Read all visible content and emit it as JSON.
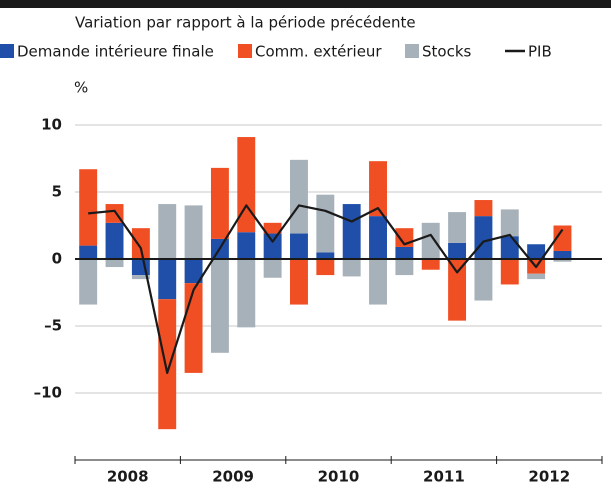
{
  "chart_data": {
    "type": "bar",
    "title": "Variation par rapport à la période précédente",
    "y_label": "%",
    "categories": [
      null,
      null,
      null,
      null,
      null,
      null,
      null,
      null,
      null,
      null,
      null,
      null,
      null,
      null,
      null,
      null,
      null,
      null,
      null,
      null
    ],
    "x_groups": [
      "2008",
      "2009",
      "2010",
      "2011",
      "2012"
    ],
    "series": [
      {
        "name": "Demande intérieure finale",
        "type": "bar",
        "color": "#1f4fa8",
        "values": [
          1.0,
          2.7,
          -1.2,
          -3.0,
          -1.8,
          1.5,
          2.0,
          1.9,
          1.9,
          0.5,
          4.1,
          3.2,
          0.9,
          0,
          1.2,
          3.2,
          1.7,
          1.1,
          0.6,
          null
        ]
      },
      {
        "name": "Comm. extérieur",
        "type": "bar",
        "color": "#f04e23",
        "values": [
          5.7,
          1.4,
          2.3,
          -9.7,
          -6.7,
          5.3,
          7.1,
          0.8,
          -3.4,
          -1.2,
          0,
          4.1,
          1.4,
          -0.8,
          -4.6,
          1.2,
          -1.9,
          -1.1,
          1.9,
          null
        ]
      },
      {
        "name": "Stocks",
        "type": "bar",
        "color": "#a7b1b9",
        "values": [
          -3.4,
          -0.6,
          -0.3,
          4.1,
          4.0,
          -7.0,
          -5.1,
          -1.4,
          5.5,
          4.3,
          -1.3,
          -3.4,
          -1.2,
          2.7,
          2.3,
          -3.1,
          2.0,
          -0.4,
          -0.2,
          null
        ]
      },
      {
        "name": "PIB",
        "type": "line",
        "color": "#1a1a1a",
        "values": [
          3.4,
          3.6,
          0.8,
          -8.5,
          -2.3,
          0.8,
          4.0,
          1.3,
          4.0,
          3.6,
          2.8,
          3.8,
          1.1,
          1.8,
          -1.0,
          1.3,
          1.8,
          -0.6,
          2.2,
          null
        ]
      }
    ],
    "ylim": [
      -15,
      12
    ],
    "yticks": [
      {
        "value": -10,
        "label": "–10"
      },
      {
        "value": -5,
        "label": "–5"
      },
      0,
      5,
      10
    ],
    "grid": true
  }
}
